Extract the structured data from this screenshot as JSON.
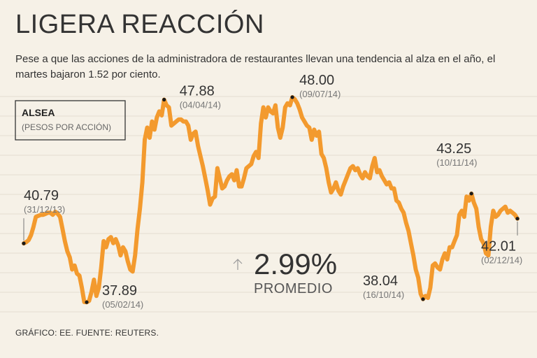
{
  "header": {
    "title": "LIGERA REACCIÓN",
    "subtitle": "Pese a que las acciones de la administradora de restaurantes llevan una tendencia al alza en el año, el martes bajaron 1.52 por ciento."
  },
  "legend": {
    "ticker": "ALSEA",
    "unit": "(PESOS POR ACCIÓN)"
  },
  "average": {
    "value": "2.99%",
    "label": "PROMEDIO",
    "arrow_icon": "up-arrow-icon"
  },
  "footer": {
    "source": "GRÁFICO: EE. FUENTE: REUTERS."
  },
  "colors": {
    "line": "#f39a2e",
    "background": "#f6f1e7",
    "marker": "#1a1a1a"
  },
  "chart_data": {
    "type": "line",
    "title": "ALSEA",
    "ylabel": "PESOS POR ACCIÓN",
    "ylim": [
      37.0,
      49.0
    ],
    "x_index_range": [
      0,
      235
    ],
    "values": [
      40.79,
      40.85,
      40.95,
      41.2,
      41.6,
      42.1,
      42.15,
      42.2,
      42.2,
      42.25,
      42.3,
      42.3,
      42.2,
      42.35,
      42.25,
      42.1,
      41.5,
      40.9,
      40.4,
      40.1,
      39.5,
      39.7,
      39.3,
      39.2,
      38.6,
      37.9,
      37.89,
      37.95,
      38.4,
      39.0,
      38.2,
      38.6,
      39.6,
      40.9,
      40.6,
      41.0,
      41.1,
      40.8,
      41.0,
      40.7,
      40.2,
      40.6,
      40.4,
      39.9,
      39.5,
      39.4,
      40.2,
      41.5,
      42.5,
      43.8,
      45.9,
      46.5,
      46.0,
      46.8,
      46.4,
      47.0,
      47.3,
      47.1,
      47.88,
      47.6,
      47.5,
      46.6,
      46.7,
      46.8,
      46.9,
      46.9,
      46.8,
      46.8,
      46.6,
      45.9,
      46.2,
      46.3,
      45.6,
      45.1,
      44.6,
      44.0,
      43.4,
      42.7,
      43.0,
      43.1,
      44.5,
      44.0,
      43.5,
      43.6,
      43.9,
      44.1,
      44.2,
      43.9,
      44.4,
      43.6,
      43.6,
      44.0,
      44.5,
      44.6,
      44.7,
      45.1,
      45.3,
      45.0,
      46.7,
      47.5,
      47.0,
      47.5,
      47.3,
      47.2,
      47.6,
      46.5,
      46.0,
      46.5,
      47.5,
      47.7,
      47.6,
      48.0,
      47.9,
      47.7,
      47.4,
      47.0,
      46.8,
      46.6,
      46.5,
      45.9,
      46.4,
      46.1,
      46.3,
      45.2,
      45.0,
      44.5,
      43.8,
      43.3,
      43.5,
      43.8,
      43.4,
      43.2,
      43.6,
      43.9,
      44.2,
      44.5,
      44.6,
      44.4,
      44.5,
      44.2,
      44.0,
      44.3,
      44.1,
      44.0,
      44.6,
      45.0,
      44.3,
      44.4,
      44.1,
      43.9,
      43.7,
      43.8,
      43.5,
      43.5,
      42.9,
      42.8,
      42.5,
      42.3,
      41.8,
      41.4,
      40.8,
      40.2,
      39.5,
      39.1,
      38.3,
      38.04,
      38.2,
      38.1,
      38.6,
      39.7,
      39.8,
      39.6,
      39.5,
      40.0,
      40.3,
      40.0,
      40.6,
      40.6,
      40.9,
      41.2,
      42.2,
      42.4,
      42.1,
      43.1,
      42.9,
      43.25,
      42.8,
      42.5,
      41.6,
      41.0,
      40.8,
      40.3,
      40.2,
      41.6,
      42.4,
      42.1,
      42.2,
      42.4,
      42.5,
      42.6,
      42.3,
      42.4,
      42.3,
      42.2,
      42.01
    ],
    "annotations": [
      {
        "value": "40.79",
        "date": "(31/12/13)"
      },
      {
        "value": "37.89",
        "date": "(05/02/14)"
      },
      {
        "value": "47.88",
        "date": "(04/04/14)"
      },
      {
        "value": "48.00",
        "date": "(09/07/14)"
      },
      {
        "value": "38.04",
        "date": "(16/10/14)"
      },
      {
        "value": "43.25",
        "date": "(10/11/14)"
      },
      {
        "value": "42.01",
        "date": "(02/12/14)"
      }
    ]
  }
}
